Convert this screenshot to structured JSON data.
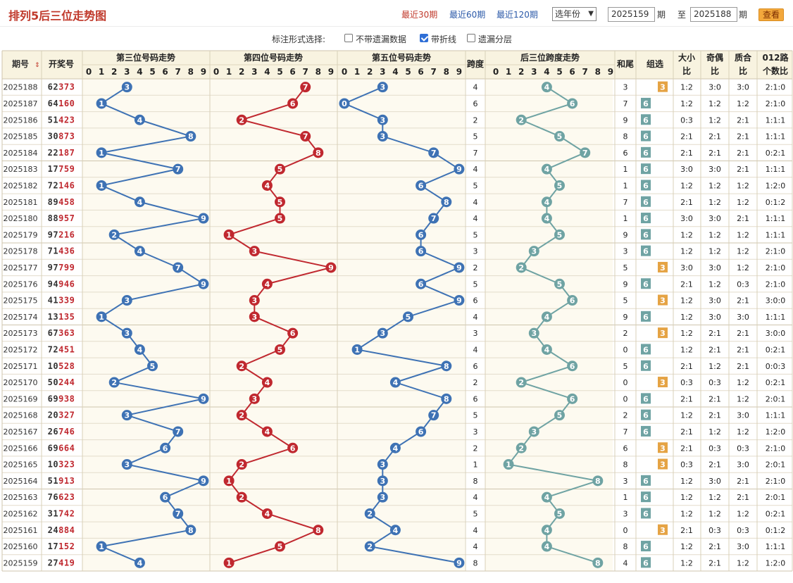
{
  "header": {
    "title": "排列5后三位走势图",
    "links": [
      "最近30期",
      "最近60期",
      "最近120期"
    ],
    "year_select": "选年份",
    "from": "2025159",
    "qi1": "期",
    "to_label": "至",
    "to": "2025188",
    "qi2": "期",
    "view": "查看"
  },
  "options": {
    "label": "标注形式选择:",
    "items": [
      {
        "label": "不带遗漏数据",
        "checked": false
      },
      {
        "label": "带折线",
        "checked": true
      },
      {
        "label": "遗漏分层",
        "checked": false
      }
    ]
  },
  "colors": {
    "bg": "#f8f3e0",
    "blue": "#3e72b4",
    "red": "#c0282f",
    "teal": "#6fa3a3",
    "orange": "#e5a344",
    "grid": "#e3dccb"
  },
  "chart_data": {
    "type": "table",
    "columns": {
      "issue": "期号",
      "draw": "开奖号",
      "g3": "第三位号码走势",
      "g4": "第四位号码走势",
      "g5": "第五位号码走势",
      "span": "跨度",
      "gspan": "后三位跨度走势",
      "sumtail": "和尾",
      "group": "组选",
      "ratio1": [
        "大小",
        "比"
      ],
      "ratio2": [
        "奇偶",
        "比"
      ],
      "ratio3": [
        "质合",
        "比"
      ],
      "ratio4": [
        "012路",
        "个数比"
      ]
    },
    "digits": [
      "0",
      "1",
      "2",
      "3",
      "4",
      "5",
      "6",
      "7",
      "8",
      "9"
    ],
    "rows": [
      {
        "issue": "2025188",
        "draw": "62373",
        "p3": 3,
        "p4": 7,
        "p5": 3,
        "span": 4,
        "sum": 3,
        "grp": "3",
        "c1": "1:2",
        "c2": "3:0",
        "c3": "3:0",
        "c4": "2:1:0"
      },
      {
        "issue": "2025187",
        "draw": "64160",
        "p3": 1,
        "p4": 6,
        "p5": 0,
        "span": 6,
        "sum": 7,
        "grp": "6",
        "c1": "1:2",
        "c2": "1:2",
        "c3": "1:2",
        "c4": "2:1:0"
      },
      {
        "issue": "2025186",
        "draw": "51423",
        "p3": 4,
        "p4": 2,
        "p5": 3,
        "span": 2,
        "sum": 9,
        "grp": "6",
        "c1": "0:3",
        "c2": "1:2",
        "c3": "2:1",
        "c4": "1:1:1"
      },
      {
        "issue": "2025185",
        "draw": "30873",
        "p3": 8,
        "p4": 7,
        "p5": 3,
        "span": 5,
        "sum": 8,
        "grp": "6",
        "c1": "2:1",
        "c2": "2:1",
        "c3": "2:1",
        "c4": "1:1:1"
      },
      {
        "issue": "2025184",
        "draw": "22187",
        "p3": 1,
        "p4": 8,
        "p5": 7,
        "span": 7,
        "sum": 6,
        "grp": "6",
        "c1": "2:1",
        "c2": "2:1",
        "c3": "2:1",
        "c4": "0:2:1"
      },
      {
        "issue": "2025183",
        "draw": "17759",
        "p3": 7,
        "p4": 5,
        "p5": 9,
        "span": 4,
        "sum": 1,
        "grp": "6",
        "c1": "3:0",
        "c2": "3:0",
        "c3": "2:1",
        "c4": "1:1:1"
      },
      {
        "issue": "2025182",
        "draw": "72146",
        "p3": 1,
        "p4": 4,
        "p5": 6,
        "span": 5,
        "sum": 1,
        "grp": "6",
        "c1": "1:2",
        "c2": "1:2",
        "c3": "1:2",
        "c4": "1:2:0"
      },
      {
        "issue": "2025181",
        "draw": "89458",
        "p3": 4,
        "p4": 5,
        "p5": 8,
        "span": 4,
        "sum": 7,
        "grp": "6",
        "c1": "2:1",
        "c2": "1:2",
        "c3": "1:2",
        "c4": "0:1:2"
      },
      {
        "issue": "2025180",
        "draw": "88957",
        "p3": 9,
        "p4": 5,
        "p5": 7,
        "span": 4,
        "sum": 1,
        "grp": "6",
        "c1": "3:0",
        "c2": "3:0",
        "c3": "2:1",
        "c4": "1:1:1"
      },
      {
        "issue": "2025179",
        "draw": "97216",
        "p3": 2,
        "p4": 1,
        "p5": 6,
        "span": 5,
        "sum": 9,
        "grp": "6",
        "c1": "1:2",
        "c2": "1:2",
        "c3": "1:2",
        "c4": "1:1:1"
      },
      {
        "issue": "2025178",
        "draw": "71436",
        "p3": 4,
        "p4": 3,
        "p5": 6,
        "span": 3,
        "sum": 3,
        "grp": "6",
        "c1": "1:2",
        "c2": "1:2",
        "c3": "1:2",
        "c4": "2:1:0"
      },
      {
        "issue": "2025177",
        "draw": "97799",
        "p3": 7,
        "p4": 9,
        "p5": 9,
        "span": 2,
        "sum": 5,
        "grp": "3",
        "c1": "3:0",
        "c2": "3:0",
        "c3": "1:2",
        "c4": "2:1:0"
      },
      {
        "issue": "2025176",
        "draw": "94946",
        "p3": 9,
        "p4": 4,
        "p5": 6,
        "span": 5,
        "sum": 9,
        "grp": "6",
        "c1": "2:1",
        "c2": "1:2",
        "c3": "0:3",
        "c4": "2:1:0"
      },
      {
        "issue": "2025175",
        "draw": "41339",
        "p3": 3,
        "p4": 3,
        "p5": 9,
        "span": 6,
        "sum": 5,
        "grp": "3",
        "c1": "1:2",
        "c2": "3:0",
        "c3": "2:1",
        "c4": "3:0:0"
      },
      {
        "issue": "2025174",
        "draw": "13135",
        "p3": 1,
        "p4": 3,
        "p5": 5,
        "span": 4,
        "sum": 9,
        "grp": "6",
        "c1": "1:2",
        "c2": "3:0",
        "c3": "3:0",
        "c4": "1:1:1"
      },
      {
        "issue": "2025173",
        "draw": "67363",
        "p3": 3,
        "p4": 6,
        "p5": 3,
        "span": 3,
        "sum": 2,
        "grp": "3",
        "c1": "1:2",
        "c2": "2:1",
        "c3": "2:1",
        "c4": "3:0:0"
      },
      {
        "issue": "2025172",
        "draw": "72451",
        "p3": 4,
        "p4": 5,
        "p5": 1,
        "span": 4,
        "sum": 0,
        "grp": "6",
        "c1": "1:2",
        "c2": "2:1",
        "c3": "2:1",
        "c4": "0:2:1"
      },
      {
        "issue": "2025171",
        "draw": "10528",
        "p3": 5,
        "p4": 2,
        "p5": 8,
        "span": 6,
        "sum": 5,
        "grp": "6",
        "c1": "2:1",
        "c2": "1:2",
        "c3": "2:1",
        "c4": "0:0:3"
      },
      {
        "issue": "2025170",
        "draw": "50244",
        "p3": 2,
        "p4": 4,
        "p5": 4,
        "span": 2,
        "sum": 0,
        "grp": "3",
        "c1": "0:3",
        "c2": "0:3",
        "c3": "1:2",
        "c4": "0:2:1"
      },
      {
        "issue": "2025169",
        "draw": "69938",
        "p3": 9,
        "p4": 3,
        "p5": 8,
        "span": 6,
        "sum": 0,
        "grp": "6",
        "c1": "2:1",
        "c2": "2:1",
        "c3": "1:2",
        "c4": "2:0:1"
      },
      {
        "issue": "2025168",
        "draw": "20327",
        "p3": 3,
        "p4": 2,
        "p5": 7,
        "span": 5,
        "sum": 2,
        "grp": "6",
        "c1": "1:2",
        "c2": "2:1",
        "c3": "3:0",
        "c4": "1:1:1"
      },
      {
        "issue": "2025167",
        "draw": "26746",
        "p3": 7,
        "p4": 4,
        "p5": 6,
        "span": 3,
        "sum": 7,
        "grp": "6",
        "c1": "2:1",
        "c2": "1:2",
        "c3": "1:2",
        "c4": "1:2:0"
      },
      {
        "issue": "2025166",
        "draw": "69664",
        "p3": 6,
        "p4": 6,
        "p5": 4,
        "span": 2,
        "sum": 6,
        "grp": "3",
        "c1": "2:1",
        "c2": "0:3",
        "c3": "0:3",
        "c4": "2:1:0"
      },
      {
        "issue": "2025165",
        "draw": "10323",
        "p3": 3,
        "p4": 2,
        "p5": 3,
        "span": 1,
        "sum": 8,
        "grp": "3",
        "c1": "0:3",
        "c2": "2:1",
        "c3": "3:0",
        "c4": "2:0:1"
      },
      {
        "issue": "2025164",
        "draw": "51913",
        "p3": 9,
        "p4": 1,
        "p5": 3,
        "span": 8,
        "sum": 3,
        "grp": "6",
        "c1": "1:2",
        "c2": "3:0",
        "c3": "2:1",
        "c4": "2:1:0"
      },
      {
        "issue": "2025163",
        "draw": "76623",
        "p3": 6,
        "p4": 2,
        "p5": 3,
        "span": 4,
        "sum": 1,
        "grp": "6",
        "c1": "1:2",
        "c2": "1:2",
        "c3": "2:1",
        "c4": "2:0:1"
      },
      {
        "issue": "2025162",
        "draw": "31742",
        "p3": 7,
        "p4": 4,
        "p5": 2,
        "span": 5,
        "sum": 3,
        "grp": "6",
        "c1": "1:2",
        "c2": "1:2",
        "c3": "1:2",
        "c4": "0:2:1"
      },
      {
        "issue": "2025161",
        "draw": "24884",
        "p3": 8,
        "p4": 8,
        "p5": 4,
        "span": 4,
        "sum": 0,
        "grp": "3",
        "c1": "2:1",
        "c2": "0:3",
        "c3": "0:3",
        "c4": "0:1:2"
      },
      {
        "issue": "2025160",
        "draw": "17152",
        "p3": 1,
        "p4": 5,
        "p5": 2,
        "span": 4,
        "sum": 8,
        "grp": "6",
        "c1": "1:2",
        "c2": "2:1",
        "c3": "3:0",
        "c4": "1:1:1"
      },
      {
        "issue": "2025159",
        "draw": "27419",
        "p3": 4,
        "p4": 1,
        "p5": 9,
        "span": 8,
        "sum": 4,
        "grp": "6",
        "c1": "1:2",
        "c2": "2:1",
        "c3": "1:2",
        "c4": "1:2:0"
      }
    ]
  }
}
